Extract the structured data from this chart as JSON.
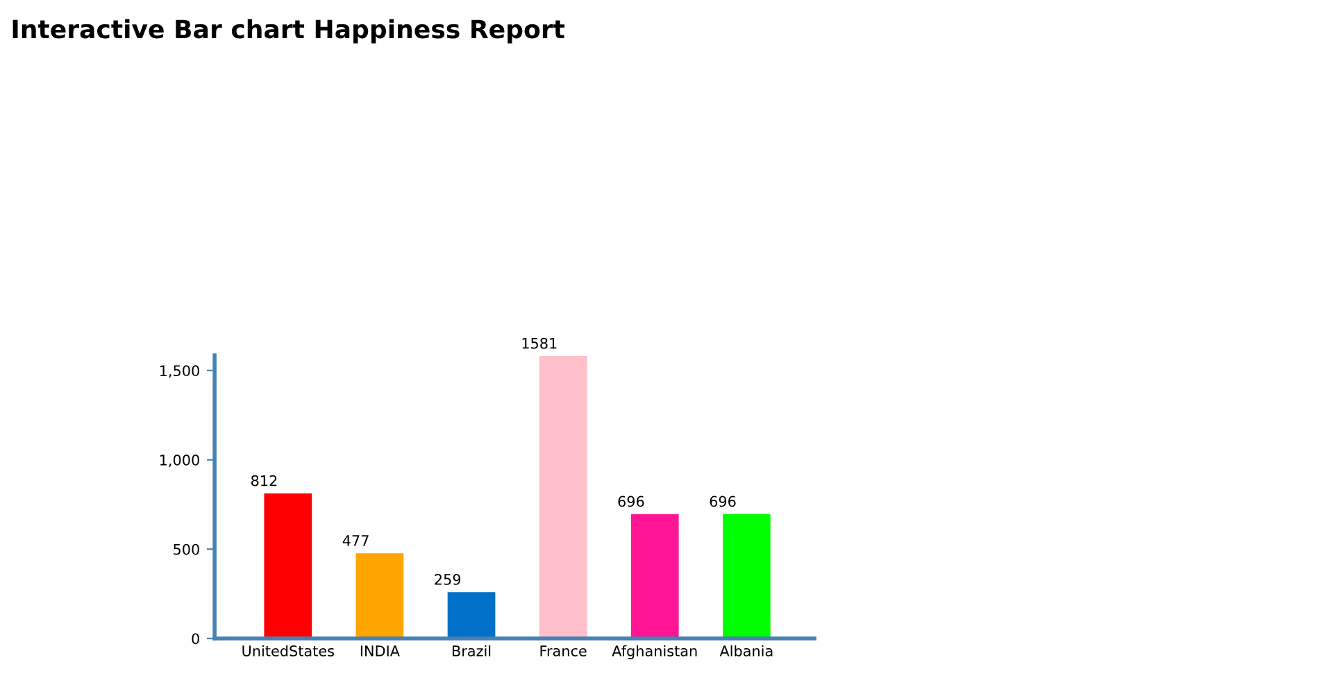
{
  "chart_data": {
    "type": "bar",
    "title": "Interactive Bar chart Happiness Report",
    "categories": [
      "UnitedStates",
      "INDIA",
      "Brazil",
      "France",
      "Afghanistan",
      "Albania"
    ],
    "values": [
      812,
      477,
      259,
      1581,
      696,
      696
    ],
    "colors": [
      "#ff0000",
      "#ffa500",
      "#0070c8",
      "#ffc0cb",
      "#ff1493",
      "#00ff00"
    ],
    "ylim": [
      0,
      1585
    ],
    "yticks": [
      0,
      {
        "value": 500,
        "label": "500"
      },
      {
        "value": 1000,
        "label": "1,000"
      },
      {
        "value": 1500,
        "label": "1,500"
      }
    ],
    "grid": false,
    "data_labels": true
  }
}
